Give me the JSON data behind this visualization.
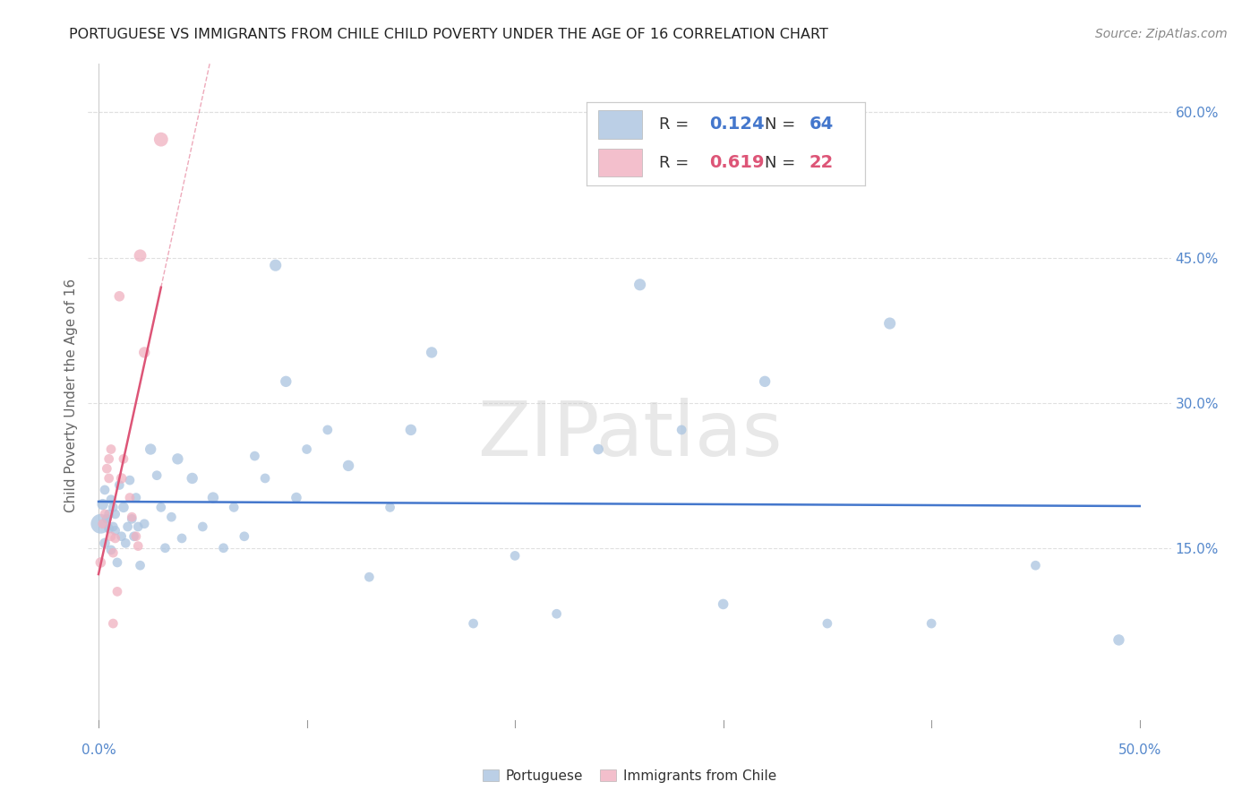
{
  "title": "PORTUGUESE VS IMMIGRANTS FROM CHILE CHILD POVERTY UNDER THE AGE OF 16 CORRELATION CHART",
  "source": "Source: ZipAtlas.com",
  "ylabel": "Child Poverty Under the Age of 16",
  "xlim": [
    -0.005,
    0.515
  ],
  "ylim": [
    -0.035,
    0.65
  ],
  "yticks_right": [
    0.15,
    0.3,
    0.45,
    0.6
  ],
  "ytick_right_labels": [
    "15.0%",
    "30.0%",
    "45.0%",
    "60.0%"
  ],
  "grid_color": "#e0e0e0",
  "background_color": "#ffffff",
  "portuguese_color": "#aac4e0",
  "chile_color": "#f0b0c0",
  "portuguese_line_color": "#4477cc",
  "chile_line_color": "#dd5577",
  "legend_R_portuguese": "0.124",
  "legend_N_portuguese": "64",
  "legend_R_chile": "0.619",
  "legend_N_chile": "22",
  "portuguese_label": "Portuguese",
  "chile_label": "Immigrants from Chile",
  "watermark_text": "ZIPatlas",
  "title_color": "#222222",
  "axis_label_color": "#666666",
  "right_axis_color": "#5588cc",
  "port_x": [
    0.001,
    0.002,
    0.003,
    0.003,
    0.004,
    0.005,
    0.005,
    0.006,
    0.006,
    0.007,
    0.007,
    0.008,
    0.008,
    0.009,
    0.01,
    0.011,
    0.012,
    0.013,
    0.014,
    0.015,
    0.016,
    0.017,
    0.018,
    0.019,
    0.02,
    0.022,
    0.025,
    0.028,
    0.03,
    0.032,
    0.035,
    0.038,
    0.04,
    0.045,
    0.05,
    0.055,
    0.06,
    0.065,
    0.07,
    0.075,
    0.08,
    0.085,
    0.09,
    0.095,
    0.1,
    0.11,
    0.12,
    0.13,
    0.14,
    0.15,
    0.16,
    0.18,
    0.2,
    0.22,
    0.24,
    0.26,
    0.28,
    0.3,
    0.32,
    0.35,
    0.38,
    0.4,
    0.45,
    0.49
  ],
  "port_y": [
    0.175,
    0.195,
    0.155,
    0.21,
    0.18,
    0.17,
    0.185,
    0.148,
    0.2,
    0.172,
    0.192,
    0.168,
    0.185,
    0.135,
    0.215,
    0.162,
    0.192,
    0.155,
    0.172,
    0.22,
    0.18,
    0.162,
    0.202,
    0.172,
    0.132,
    0.175,
    0.252,
    0.225,
    0.192,
    0.15,
    0.182,
    0.242,
    0.16,
    0.222,
    0.172,
    0.202,
    0.15,
    0.192,
    0.162,
    0.245,
    0.222,
    0.442,
    0.322,
    0.202,
    0.252,
    0.272,
    0.235,
    0.12,
    0.192,
    0.272,
    0.352,
    0.072,
    0.142,
    0.082,
    0.252,
    0.422,
    0.272,
    0.092,
    0.322,
    0.072,
    0.382,
    0.072,
    0.132,
    0.055
  ],
  "port_s": [
    250,
    80,
    70,
    60,
    60,
    60,
    60,
    60,
    60,
    60,
    60,
    60,
    60,
    60,
    60,
    60,
    70,
    60,
    60,
    60,
    60,
    60,
    60,
    60,
    60,
    60,
    80,
    60,
    60,
    60,
    60,
    80,
    60,
    80,
    60,
    80,
    60,
    60,
    60,
    60,
    60,
    90,
    80,
    70,
    60,
    60,
    80,
    60,
    60,
    80,
    80,
    60,
    60,
    60,
    70,
    90,
    60,
    70,
    80,
    60,
    90,
    60,
    60,
    80
  ],
  "chile_x": [
    0.001,
    0.002,
    0.003,
    0.004,
    0.005,
    0.005,
    0.006,
    0.006,
    0.007,
    0.007,
    0.008,
    0.009,
    0.01,
    0.011,
    0.012,
    0.015,
    0.016,
    0.018,
    0.019,
    0.02,
    0.022,
    0.03
  ],
  "chile_y": [
    0.135,
    0.175,
    0.185,
    0.232,
    0.242,
    0.222,
    0.252,
    0.162,
    0.145,
    0.072,
    0.16,
    0.105,
    0.41,
    0.222,
    0.242,
    0.202,
    0.182,
    0.162,
    0.152,
    0.452,
    0.352,
    0.572
  ],
  "chile_s": [
    70,
    60,
    60,
    60,
    60,
    60,
    60,
    60,
    60,
    60,
    60,
    60,
    70,
    70,
    60,
    60,
    60,
    60,
    60,
    100,
    80,
    130
  ]
}
